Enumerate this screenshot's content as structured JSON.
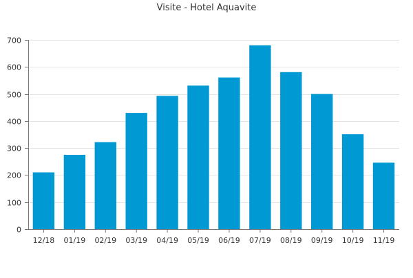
{
  "chart_data": {
    "type": "bar",
    "title": "Visite - Hotel Aquavite",
    "xlabel": "",
    "ylabel": "",
    "categories": [
      "12/18",
      "01/19",
      "02/19",
      "03/19",
      "04/19",
      "05/19",
      "06/19",
      "07/19",
      "08/19",
      "09/19",
      "10/19",
      "11/19"
    ],
    "values": [
      210,
      275,
      322,
      430,
      493,
      531,
      561,
      680,
      581,
      500,
      351,
      246
    ],
    "ylim": [
      0,
      700
    ],
    "yticks": [
      0,
      100,
      200,
      300,
      400,
      500,
      600,
      700
    ],
    "grid": true,
    "legend": "none",
    "bar_color": "#0099d4",
    "grid_color": "#e4e4e4",
    "axis_color": "#777777",
    "text_color": "#333333"
  }
}
